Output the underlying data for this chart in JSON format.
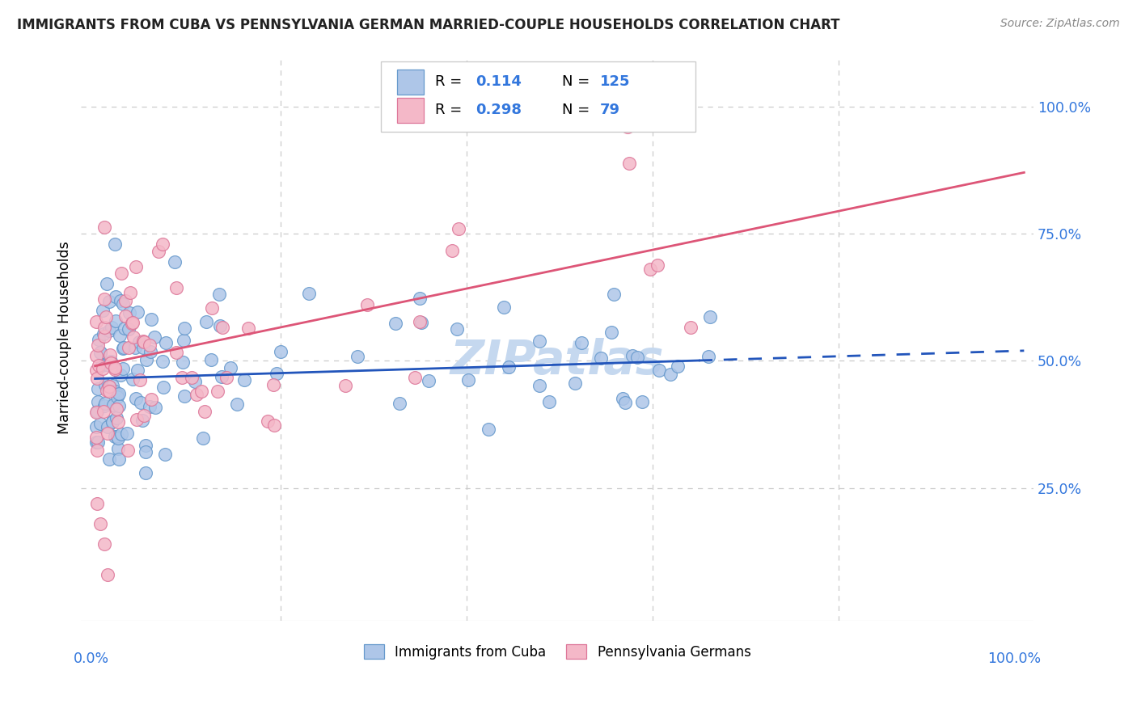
{
  "title": "IMMIGRANTS FROM CUBA VS PENNSYLVANIA GERMAN MARRIED-COUPLE HOUSEHOLDS CORRELATION CHART",
  "source": "Source: ZipAtlas.com",
  "ylabel": "Married-couple Households",
  "legend_r_blue": "0.114",
  "legend_n_blue": "125",
  "legend_r_pink": "0.298",
  "legend_n_pink": "79",
  "blue_color": "#aec6e8",
  "blue_edge_color": "#6699cc",
  "pink_color": "#f4b8c8",
  "pink_edge_color": "#dd7799",
  "line_blue_color": "#2255bb",
  "line_pink_color": "#dd5577",
  "axis_color": "#cccccc",
  "label_color": "#3377dd",
  "watermark_color": "#c5d8ef",
  "title_color": "#222222",
  "source_color": "#888888"
}
